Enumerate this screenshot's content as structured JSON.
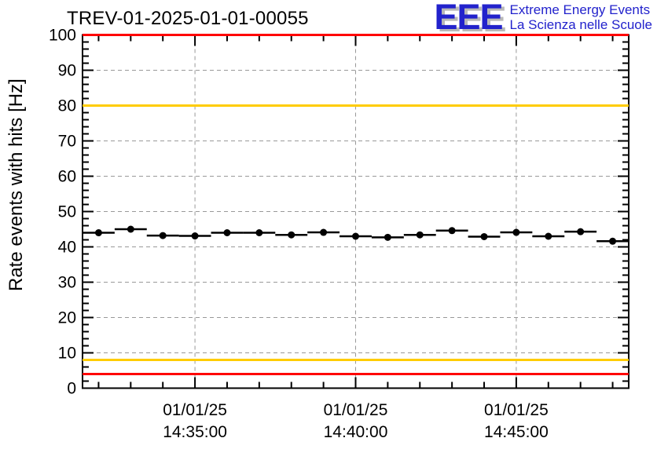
{
  "page": {
    "background": "#ffffff"
  },
  "header": {
    "title": "TREV-01-2025-01-01-00055",
    "logo": {
      "acronym": "EEE",
      "line1": "Extreme Energy Events",
      "line2": "La Scienza nelle Scuole",
      "color": "#2222cc",
      "shadow_color": "#b8b8b8"
    }
  },
  "chart_data": {
    "type": "scatter",
    "title": "TREV-01-2025-01-01-00055",
    "xlabel": "",
    "ylabel": "Rate events with hits [Hz]",
    "ylim": [
      0,
      100
    ],
    "y_major_step": 10,
    "y_minor_step": 2,
    "y_tick_labels": [
      "0",
      "10",
      "20",
      "30",
      "40",
      "50",
      "60",
      "70",
      "80",
      "90",
      "100"
    ],
    "grid": true,
    "legend": false,
    "date": "01/01/25",
    "x_times": [
      "14:32",
      "14:33",
      "14:34",
      "14:35",
      "14:36",
      "14:37",
      "14:38",
      "14:39",
      "14:40",
      "14:41",
      "14:42",
      "14:43",
      "14:44",
      "14:45",
      "14:46",
      "14:47",
      "14:48"
    ],
    "values": [
      44.0,
      45.0,
      43.2,
      43.1,
      44.0,
      44.0,
      43.4,
      44.1,
      43.0,
      42.7,
      43.4,
      44.6,
      42.9,
      44.1,
      43.0,
      44.3,
      41.6
    ],
    "x_bin_minutes": 1,
    "x_major_ticks": [
      {
        "time": "14:35",
        "date_label": "01/01/25",
        "time_label": "14:35:00"
      },
      {
        "time": "14:40",
        "date_label": "01/01/25",
        "time_label": "14:40:00"
      },
      {
        "time": "14:45",
        "date_label": "01/01/25",
        "time_label": "14:45:00"
      }
    ],
    "thresholds": [
      {
        "name": "red-max",
        "value": 100,
        "color": "#ff0000"
      },
      {
        "name": "yellow-max",
        "value": 80,
        "color": "#ffcc00"
      },
      {
        "name": "yellow-min",
        "value": 8,
        "color": "#ffcc00"
      },
      {
        "name": "red-min",
        "value": 4,
        "color": "#ff0000"
      }
    ],
    "series_color": "#000000",
    "gridline_color": "#999999"
  }
}
